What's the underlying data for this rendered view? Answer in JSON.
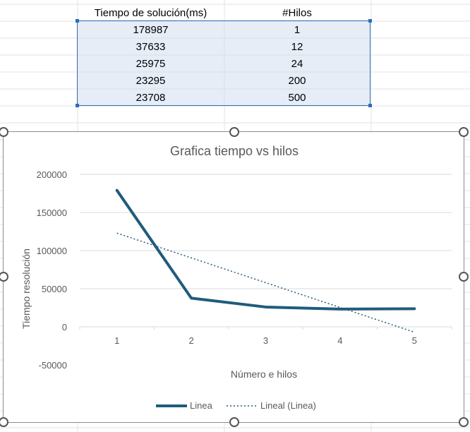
{
  "table": {
    "headers": [
      "Tiempo de solución(ms)",
      "#Hilos"
    ],
    "rows": [
      [
        "178987",
        "1"
      ],
      [
        "37633",
        "12"
      ],
      [
        "25975",
        "24"
      ],
      [
        "23295",
        "200"
      ],
      [
        "23708",
        "500"
      ]
    ]
  },
  "colors": {
    "series_line": "#1f5c7a",
    "trendline": "#1f5c7a",
    "selection_border": "#2f6db5",
    "selection_fill": "#dde6f3",
    "gridline": "#d9d9d9",
    "text": "#595959"
  },
  "chart_data": {
    "type": "line",
    "title": "Grafica tiempo vs hilos",
    "xlabel": "Número e hilos",
    "ylabel": "Tiempo resolución",
    "categories": [
      "1",
      "2",
      "3",
      "4",
      "5"
    ],
    "series": [
      {
        "name": "Linea",
        "values": [
          178987,
          37633,
          25975,
          23295,
          23708
        ]
      }
    ],
    "trendline": {
      "name": "Lineal (Linea)",
      "type": "linear",
      "of_series": "Linea"
    },
    "ylim": [
      -50000,
      200000
    ],
    "yticks": [
      -50000,
      0,
      50000,
      100000,
      150000,
      200000
    ],
    "ytick_labels": [
      "-50000",
      "0",
      "50000",
      "100000",
      "150000",
      "200000"
    ],
    "grid": true,
    "legend_position": "bottom"
  }
}
